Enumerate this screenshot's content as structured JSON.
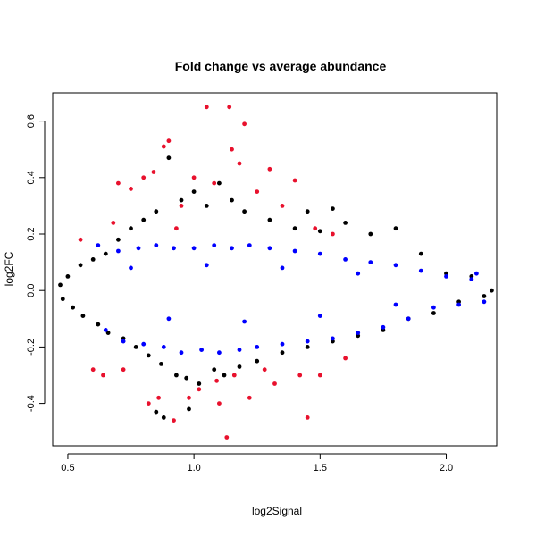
{
  "chart_data": {
    "type": "scatter",
    "title": "Fold change vs average abundance",
    "xlabel": "log2Signal",
    "ylabel": "log2FC",
    "xlim": [
      0.44,
      2.2
    ],
    "ylim": [
      -0.55,
      0.7
    ],
    "x_ticks": [
      0.5,
      1.0,
      1.5,
      2.0
    ],
    "x_tick_labels": [
      "0.5",
      "1.0",
      "1.5",
      "2.0"
    ],
    "y_ticks": [
      -0.4,
      -0.2,
      0.0,
      0.2,
      0.4,
      0.6
    ],
    "y_tick_labels": [
      "-0.4",
      "-0.2",
      "0.0",
      "0.2",
      "0.4",
      "0.6"
    ],
    "grid": false,
    "colors": {
      "black_series": "#000000",
      "blue_series": "#0000ff",
      "red_series": "#e8112d"
    },
    "series": [
      {
        "color": "#000000",
        "points": [
          [
            0.47,
            0.02
          ],
          [
            0.48,
            -0.03
          ],
          [
            0.5,
            0.05
          ],
          [
            0.52,
            -0.06
          ],
          [
            0.55,
            0.09
          ],
          [
            0.56,
            -0.09
          ],
          [
            0.6,
            0.11
          ],
          [
            0.62,
            -0.12
          ],
          [
            0.65,
            0.13
          ],
          [
            0.66,
            -0.15
          ],
          [
            0.7,
            0.18
          ],
          [
            0.72,
            -0.17
          ],
          [
            0.75,
            0.22
          ],
          [
            0.77,
            -0.2
          ],
          [
            0.8,
            0.25
          ],
          [
            0.82,
            -0.23
          ],
          [
            0.85,
            0.28
          ],
          [
            0.87,
            -0.26
          ],
          [
            0.9,
            0.47
          ],
          [
            0.93,
            -0.3
          ],
          [
            0.95,
            0.32
          ],
          [
            0.97,
            -0.31
          ],
          [
            1.0,
            0.35
          ],
          [
            1.02,
            -0.33
          ],
          [
            1.05,
            0.3
          ],
          [
            1.08,
            -0.28
          ],
          [
            1.1,
            0.38
          ],
          [
            1.12,
            -0.3
          ],
          [
            1.15,
            0.32
          ],
          [
            1.18,
            -0.27
          ],
          [
            1.2,
            0.28
          ],
          [
            1.25,
            -0.25
          ],
          [
            1.3,
            0.25
          ],
          [
            1.35,
            -0.22
          ],
          [
            1.4,
            0.22
          ],
          [
            1.45,
            -0.2
          ],
          [
            1.5,
            0.21
          ],
          [
            1.55,
            -0.18
          ],
          [
            1.6,
            0.24
          ],
          [
            1.65,
            -0.16
          ],
          [
            1.7,
            0.2
          ],
          [
            1.75,
            -0.14
          ],
          [
            1.8,
            0.22
          ],
          [
            1.85,
            -0.1
          ],
          [
            1.9,
            0.13
          ],
          [
            1.95,
            -0.08
          ],
          [
            2.0,
            0.06
          ],
          [
            2.05,
            -0.04
          ],
          [
            2.1,
            0.05
          ],
          [
            2.15,
            -0.02
          ],
          [
            2.18,
            0.0
          ],
          [
            0.85,
            -0.43
          ],
          [
            0.88,
            -0.45
          ],
          [
            0.98,
            -0.42
          ],
          [
            1.45,
            0.28
          ],
          [
            1.55,
            0.29
          ]
        ]
      },
      {
        "color": "#0000ff",
        "points": [
          [
            0.62,
            0.16
          ],
          [
            0.65,
            -0.14
          ],
          [
            0.7,
            0.14
          ],
          [
            0.72,
            -0.18
          ],
          [
            0.78,
            0.15
          ],
          [
            0.8,
            -0.19
          ],
          [
            0.85,
            0.16
          ],
          [
            0.88,
            -0.2
          ],
          [
            0.92,
            0.15
          ],
          [
            0.95,
            -0.22
          ],
          [
            1.0,
            0.15
          ],
          [
            1.03,
            -0.21
          ],
          [
            1.08,
            0.16
          ],
          [
            1.1,
            -0.22
          ],
          [
            1.15,
            0.15
          ],
          [
            1.18,
            -0.21
          ],
          [
            1.22,
            0.16
          ],
          [
            1.25,
            -0.2
          ],
          [
            1.3,
            0.15
          ],
          [
            1.35,
            -0.19
          ],
          [
            1.4,
            0.14
          ],
          [
            1.45,
            -0.18
          ],
          [
            1.5,
            0.13
          ],
          [
            1.55,
            -0.17
          ],
          [
            1.6,
            0.11
          ],
          [
            1.65,
            -0.15
          ],
          [
            1.7,
            0.1
          ],
          [
            1.75,
            -0.13
          ],
          [
            1.8,
            0.09
          ],
          [
            1.85,
            -0.1
          ],
          [
            1.9,
            0.07
          ],
          [
            1.95,
            -0.06
          ],
          [
            2.0,
            0.05
          ],
          [
            2.05,
            -0.05
          ],
          [
            2.1,
            0.04
          ],
          [
            2.15,
            -0.04
          ],
          [
            0.75,
            0.08
          ],
          [
            0.9,
            -0.1
          ],
          [
            1.05,
            0.09
          ],
          [
            1.2,
            -0.11
          ],
          [
            1.35,
            0.08
          ],
          [
            1.5,
            -0.09
          ],
          [
            1.65,
            0.06
          ],
          [
            1.8,
            -0.05
          ],
          [
            2.12,
            0.06
          ]
        ]
      },
      {
        "color": "#e8112d",
        "points": [
          [
            0.55,
            0.18
          ],
          [
            0.6,
            -0.28
          ],
          [
            0.64,
            -0.3
          ],
          [
            0.68,
            0.24
          ],
          [
            0.7,
            0.38
          ],
          [
            0.72,
            -0.28
          ],
          [
            0.75,
            0.36
          ],
          [
            0.8,
            0.4
          ],
          [
            0.82,
            -0.4
          ],
          [
            0.84,
            0.42
          ],
          [
            0.86,
            -0.38
          ],
          [
            0.88,
            0.51
          ],
          [
            0.9,
            0.53
          ],
          [
            0.92,
            -0.46
          ],
          [
            0.95,
            0.3
          ],
          [
            0.98,
            -0.38
          ],
          [
            1.0,
            0.4
          ],
          [
            1.02,
            -0.35
          ],
          [
            1.05,
            0.65
          ],
          [
            1.08,
            0.38
          ],
          [
            1.1,
            -0.4
          ],
          [
            1.14,
            0.65
          ],
          [
            1.15,
            0.5
          ],
          [
            1.16,
            -0.3
          ],
          [
            1.18,
            0.45
          ],
          [
            1.2,
            0.59
          ],
          [
            1.22,
            -0.38
          ],
          [
            1.25,
            0.35
          ],
          [
            1.28,
            -0.28
          ],
          [
            1.3,
            0.43
          ],
          [
            1.32,
            -0.33
          ],
          [
            1.35,
            0.3
          ],
          [
            1.4,
            0.39
          ],
          [
            1.42,
            -0.3
          ],
          [
            1.45,
            -0.45
          ],
          [
            1.48,
            0.22
          ],
          [
            1.5,
            -0.3
          ],
          [
            1.55,
            0.2
          ],
          [
            1.6,
            -0.24
          ],
          [
            1.13,
            -0.52
          ],
          [
            1.09,
            -0.32
          ],
          [
            0.93,
            0.22
          ]
        ]
      }
    ]
  }
}
